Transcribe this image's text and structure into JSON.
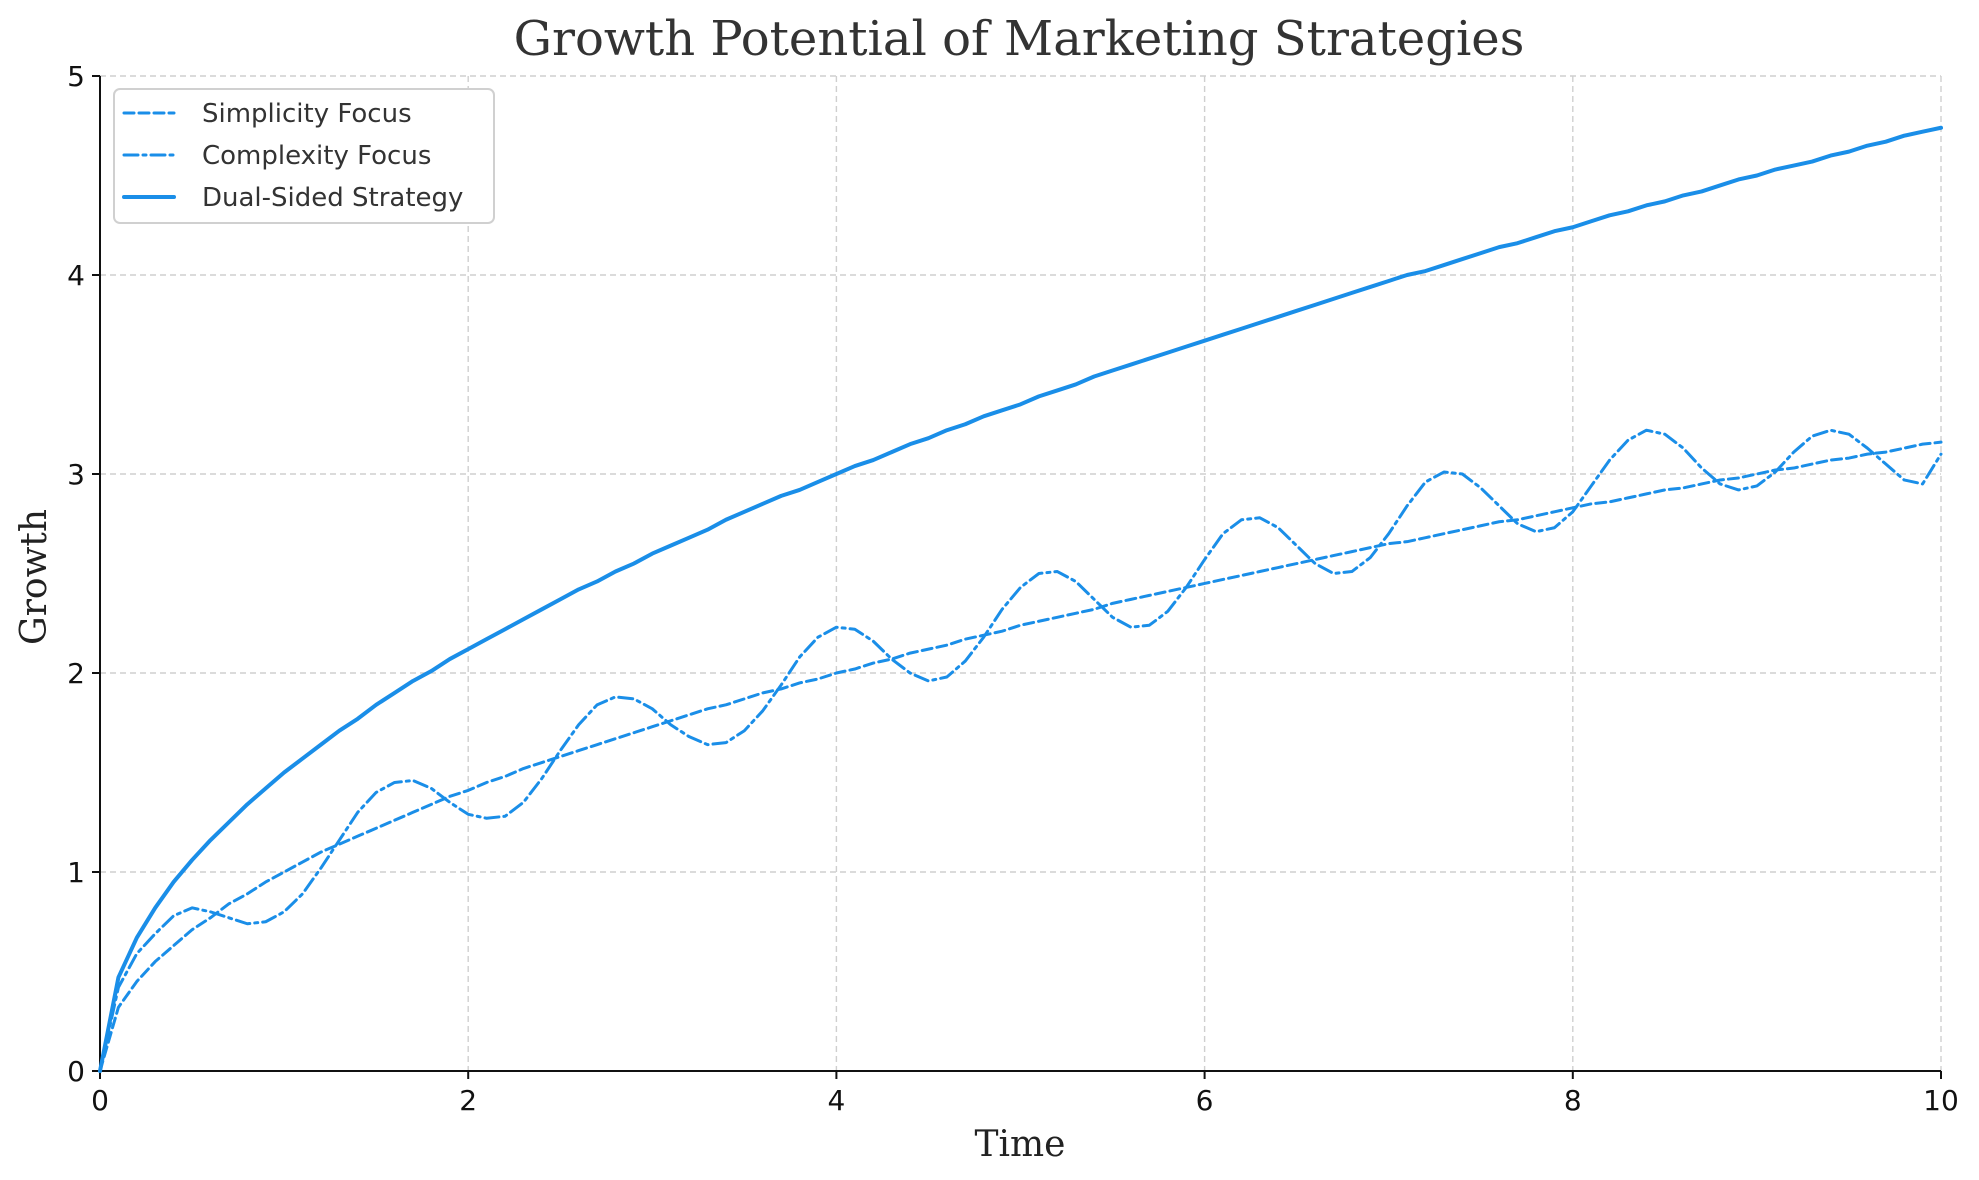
{
  "chart_data": {
    "type": "line",
    "title": "Growth Potential of Marketing Strategies",
    "xlabel": "Time",
    "ylabel": "Growth",
    "xlim": [
      0,
      10
    ],
    "ylim": [
      0,
      5
    ],
    "x_ticks": [
      "0",
      "2",
      "4",
      "6",
      "8",
      "10"
    ],
    "y_ticks": [
      "0",
      "1",
      "2",
      "3",
      "4",
      "5"
    ],
    "grid": true,
    "legend_position": "top-left",
    "x": [
      0,
      0.1,
      0.2,
      0.3,
      0.4,
      0.5,
      0.6,
      0.7,
      0.8,
      0.9,
      1.0,
      1.1,
      1.2,
      1.3,
      1.4,
      1.5,
      1.6,
      1.7,
      1.8,
      1.9,
      2.0,
      2.1,
      2.2,
      2.3,
      2.4,
      2.5,
      2.6,
      2.7,
      2.8,
      2.9,
      3.0,
      3.1,
      3.2,
      3.3,
      3.4,
      3.5,
      3.6,
      3.7,
      3.8,
      3.9,
      4.0,
      4.1,
      4.2,
      4.3,
      4.4,
      4.5,
      4.6,
      4.7,
      4.8,
      4.9,
      5.0,
      5.1,
      5.2,
      5.3,
      5.4,
      5.5,
      5.6,
      5.7,
      5.8,
      5.9,
      6.0,
      6.1,
      6.2,
      6.3,
      6.4,
      6.5,
      6.6,
      6.7,
      6.8,
      6.9,
      7.0,
      7.1,
      7.2,
      7.3,
      7.4,
      7.5,
      7.6,
      7.7,
      7.8,
      7.9,
      8.0,
      8.1,
      8.2,
      8.3,
      8.4,
      8.5,
      8.6,
      8.7,
      8.8,
      8.9,
      9.0,
      9.1,
      9.2,
      9.3,
      9.4,
      9.5,
      9.6,
      9.7,
      9.8,
      9.9,
      10.0
    ],
    "series": [
      {
        "name": "Simplicity Focus",
        "style": "dashed",
        "color": "#1a8ee8",
        "values": [
          0,
          0.32,
          0.45,
          0.55,
          0.63,
          0.71,
          0.77,
          0.84,
          0.89,
          0.95,
          1.0,
          1.05,
          1.1,
          1.14,
          1.18,
          1.22,
          1.26,
          1.3,
          1.34,
          1.38,
          1.41,
          1.45,
          1.48,
          1.52,
          1.55,
          1.58,
          1.61,
          1.64,
          1.67,
          1.7,
          1.73,
          1.76,
          1.79,
          1.82,
          1.84,
          1.87,
          1.9,
          1.92,
          1.95,
          1.97,
          2.0,
          2.02,
          2.05,
          2.07,
          2.1,
          2.12,
          2.14,
          2.17,
          2.19,
          2.21,
          2.24,
          2.26,
          2.28,
          2.3,
          2.32,
          2.35,
          2.37,
          2.39,
          2.41,
          2.43,
          2.45,
          2.47,
          2.49,
          2.51,
          2.53,
          2.55,
          2.57,
          2.59,
          2.61,
          2.63,
          2.65,
          2.66,
          2.68,
          2.7,
          2.72,
          2.74,
          2.76,
          2.77,
          2.79,
          2.81,
          2.83,
          2.85,
          2.86,
          2.88,
          2.9,
          2.92,
          2.93,
          2.95,
          2.97,
          2.98,
          3.0,
          3.02,
          3.03,
          3.05,
          3.07,
          3.08,
          3.1,
          3.11,
          3.13,
          3.15,
          3.16
        ]
      },
      {
        "name": "Complexity Focus",
        "style": "dashdot",
        "color": "#1a8ee8",
        "values": [
          0,
          0.42,
          0.59,
          0.69,
          0.78,
          0.82,
          0.8,
          0.77,
          0.74,
          0.75,
          0.8,
          0.89,
          1.02,
          1.16,
          1.3,
          1.4,
          1.45,
          1.46,
          1.42,
          1.35,
          1.29,
          1.27,
          1.28,
          1.35,
          1.47,
          1.61,
          1.74,
          1.84,
          1.88,
          1.87,
          1.82,
          1.74,
          1.68,
          1.64,
          1.65,
          1.71,
          1.81,
          1.94,
          2.08,
          2.18,
          2.23,
          2.22,
          2.16,
          2.07,
          2.0,
          1.96,
          1.98,
          2.06,
          2.18,
          2.32,
          2.43,
          2.5,
          2.51,
          2.46,
          2.37,
          2.28,
          2.23,
          2.24,
          2.31,
          2.43,
          2.57,
          2.7,
          2.77,
          2.78,
          2.73,
          2.64,
          2.55,
          2.5,
          2.51,
          2.58,
          2.7,
          2.84,
          2.96,
          3.01,
          3.0,
          2.93,
          2.84,
          2.75,
          2.71,
          2.73,
          2.81,
          2.94,
          3.07,
          3.17,
          3.22,
          3.2,
          3.13,
          3.03,
          2.95,
          2.92,
          2.94,
          3.01,
          3.11,
          3.19,
          3.22,
          3.2,
          3.13,
          3.05,
          2.97,
          2.95,
          3.1
        ]
      },
      {
        "name": "Dual-Sided Strategy",
        "style": "solid",
        "color": "#1a8ee8",
        "values": [
          0,
          0.47,
          0.67,
          0.82,
          0.95,
          1.06,
          1.16,
          1.25,
          1.34,
          1.42,
          1.5,
          1.57,
          1.64,
          1.71,
          1.77,
          1.84,
          1.9,
          1.96,
          2.01,
          2.07,
          2.12,
          2.17,
          2.22,
          2.27,
          2.32,
          2.37,
          2.42,
          2.46,
          2.51,
          2.55,
          2.6,
          2.64,
          2.68,
          2.72,
          2.77,
          2.81,
          2.85,
          2.89,
          2.92,
          2.96,
          3.0,
          3.04,
          3.07,
          3.11,
          3.15,
          3.18,
          3.22,
          3.25,
          3.29,
          3.32,
          3.35,
          3.39,
          3.42,
          3.45,
          3.49,
          3.52,
          3.55,
          3.58,
          3.61,
          3.64,
          3.67,
          3.7,
          3.73,
          3.76,
          3.79,
          3.82,
          3.85,
          3.88,
          3.91,
          3.94,
          3.97,
          4.0,
          4.02,
          4.05,
          4.08,
          4.11,
          4.14,
          4.16,
          4.19,
          4.22,
          4.24,
          4.27,
          4.3,
          4.32,
          4.35,
          4.37,
          4.4,
          4.42,
          4.45,
          4.48,
          4.5,
          4.53,
          4.55,
          4.57,
          4.6,
          4.62,
          4.65,
          4.67,
          4.7,
          4.72,
          4.74
        ]
      }
    ]
  }
}
